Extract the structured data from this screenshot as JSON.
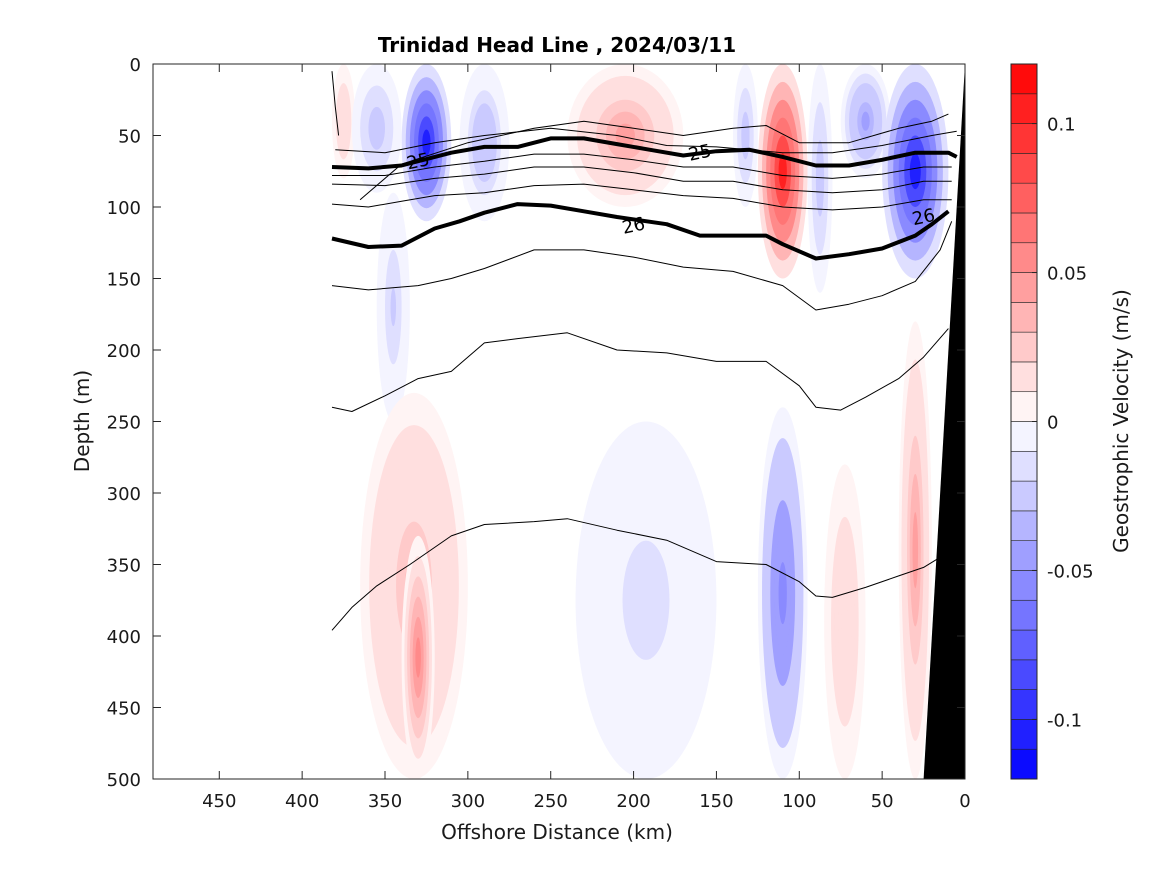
{
  "chart_data": {
    "type": "section-contour",
    "title": "Trinidad Head Line , 2024/03/11",
    "xlabel": "Offshore Distance (km)",
    "ylabel": "Depth (m)",
    "colorbar_label": "Geostrophic Velocity (m/s)",
    "xlim": [
      490,
      0
    ],
    "ylim": [
      0,
      500
    ],
    "x_direction": "reversed",
    "y_direction": "reversed",
    "x_ticks": [
      450,
      400,
      350,
      300,
      250,
      200,
      150,
      100,
      50,
      0
    ],
    "y_ticks": [
      0,
      50,
      100,
      150,
      200,
      250,
      300,
      350,
      400,
      450,
      500
    ],
    "colorbar": {
      "range": [
        -0.12,
        0.12
      ],
      "ticks": [
        0.1,
        0.05,
        0,
        -0.05,
        -0.1
      ],
      "tick_labels": [
        "0.1",
        "0.05",
        "0",
        "-0.05",
        "-0.1"
      ],
      "levels": 24,
      "colormap": "blue-white-red",
      "negative_color": "#0000ff",
      "positive_color": "#ff0000"
    },
    "velocity_patches": [
      {
        "x0": 382,
        "x1": 368,
        "y0": 0,
        "y1": 80,
        "v": 0.02
      },
      {
        "x0": 370,
        "x1": 340,
        "y0": 0,
        "y1": 90,
        "v": -0.025
      },
      {
        "x0": 340,
        "x1": 310,
        "y0": 0,
        "y1": 110,
        "v": -0.1
      },
      {
        "x0": 355,
        "x1": 335,
        "y0": 90,
        "y1": 250,
        "v": -0.02
      },
      {
        "x0": 305,
        "x1": 275,
        "y0": 0,
        "y1": 110,
        "v": -0.03
      },
      {
        "x0": 240,
        "x1": 170,
        "y0": 0,
        "y1": 100,
        "v": 0.04
      },
      {
        "x0": 140,
        "x1": 125,
        "y0": 0,
        "y1": 100,
        "v": -0.025
      },
      {
        "x0": 125,
        "x1": 95,
        "y0": 0,
        "y1": 150,
        "v": 0.1
      },
      {
        "x0": 95,
        "x1": 80,
        "y0": 0,
        "y1": 160,
        "v": -0.025
      },
      {
        "x0": 75,
        "x1": 45,
        "y0": 0,
        "y1": 80,
        "v": -0.04
      },
      {
        "x0": 50,
        "x1": 10,
        "y0": 0,
        "y1": 150,
        "v": -0.1
      },
      {
        "x0": 365,
        "x1": 300,
        "y0": 230,
        "y1": 500,
        "v": 0.03
      },
      {
        "x0": 340,
        "x1": 320,
        "y0": 330,
        "y1": 500,
        "v": 0.05
      },
      {
        "x0": 235,
        "x1": 150,
        "y0": 250,
        "y1": 500,
        "v": -0.015
      },
      {
        "x0": 125,
        "x1": 95,
        "y0": 240,
        "y1": 500,
        "v": -0.06
      },
      {
        "x0": 85,
        "x1": 60,
        "y0": 280,
        "y1": 500,
        "v": 0.02
      },
      {
        "x0": 40,
        "x1": 20,
        "y0": 180,
        "y1": 500,
        "v": 0.04
      }
    ],
    "isopycnals": [
      {
        "label": "",
        "bold": false,
        "points": [
          [
            382,
            5
          ],
          [
            380,
            30
          ],
          [
            378,
            50
          ]
        ]
      },
      {
        "label": "",
        "bold": false,
        "points": [
          [
            365,
            95
          ],
          [
            340,
            70
          ],
          [
            300,
            55
          ],
          [
            260,
            45
          ],
          [
            230,
            40
          ],
          [
            200,
            45
          ],
          [
            170,
            50
          ],
          [
            140,
            45
          ],
          [
            120,
            43
          ],
          [
            100,
            55
          ],
          [
            70,
            55
          ],
          [
            40,
            45
          ],
          [
            20,
            40
          ],
          [
            10,
            35
          ]
        ]
      },
      {
        "label": "",
        "bold": false,
        "points": [
          [
            380,
            60
          ],
          [
            350,
            62
          ],
          [
            320,
            55
          ],
          [
            290,
            50
          ],
          [
            250,
            45
          ],
          [
            210,
            50
          ],
          [
            180,
            57
          ],
          [
            150,
            58
          ],
          [
            110,
            62
          ],
          [
            80,
            62
          ],
          [
            50,
            57
          ],
          [
            20,
            50
          ],
          [
            5,
            47
          ]
        ]
      },
      {
        "label": "25",
        "bold": true,
        "label_positions": [
          [
            330,
            68
          ],
          [
            160,
            62
          ]
        ],
        "points": [
          [
            382,
            72
          ],
          [
            360,
            73
          ],
          [
            340,
            71
          ],
          [
            310,
            62
          ],
          [
            290,
            58
          ],
          [
            270,
            58
          ],
          [
            250,
            52
          ],
          [
            230,
            52
          ],
          [
            210,
            56
          ],
          [
            190,
            60
          ],
          [
            170,
            64
          ],
          [
            150,
            61
          ],
          [
            130,
            60
          ],
          [
            110,
            65
          ],
          [
            90,
            71
          ],
          [
            70,
            71
          ],
          [
            50,
            67
          ],
          [
            30,
            62
          ],
          [
            10,
            62
          ],
          [
            5,
            65
          ]
        ]
      },
      {
        "label": "",
        "bold": false,
        "points": [
          [
            382,
            78
          ],
          [
            350,
            78
          ],
          [
            320,
            72
          ],
          [
            290,
            68
          ],
          [
            260,
            63
          ],
          [
            230,
            63
          ],
          [
            200,
            67
          ],
          [
            170,
            72
          ],
          [
            140,
            72
          ],
          [
            110,
            78
          ],
          [
            80,
            80
          ],
          [
            50,
            77
          ],
          [
            25,
            72
          ],
          [
            8,
            72
          ]
        ]
      },
      {
        "label": "",
        "bold": false,
        "points": [
          [
            382,
            84
          ],
          [
            350,
            85
          ],
          [
            320,
            80
          ],
          [
            290,
            77
          ],
          [
            260,
            72
          ],
          [
            230,
            72
          ],
          [
            200,
            76
          ],
          [
            170,
            82
          ],
          [
            140,
            82
          ],
          [
            110,
            88
          ],
          [
            80,
            90
          ],
          [
            50,
            88
          ],
          [
            25,
            82
          ],
          [
            8,
            82
          ]
        ]
      },
      {
        "label": "",
        "bold": false,
        "points": [
          [
            382,
            98
          ],
          [
            360,
            100
          ],
          [
            340,
            96
          ],
          [
            320,
            92
          ],
          [
            290,
            90
          ],
          [
            260,
            85
          ],
          [
            230,
            84
          ],
          [
            200,
            88
          ],
          [
            170,
            92
          ],
          [
            140,
            94
          ],
          [
            110,
            100
          ],
          [
            80,
            102
          ],
          [
            50,
            100
          ],
          [
            25,
            95
          ],
          [
            8,
            95
          ]
        ]
      },
      {
        "label": "26",
        "bold": true,
        "label_positions": [
          [
            200,
            113
          ],
          [
            25,
            107
          ]
        ],
        "points": [
          [
            382,
            122
          ],
          [
            360,
            128
          ],
          [
            340,
            127
          ],
          [
            320,
            115
          ],
          [
            305,
            110
          ],
          [
            290,
            104
          ],
          [
            270,
            98
          ],
          [
            250,
            99
          ],
          [
            230,
            103
          ],
          [
            210,
            107
          ],
          [
            180,
            112
          ],
          [
            160,
            120
          ],
          [
            140,
            120
          ],
          [
            120,
            120
          ],
          [
            110,
            126
          ],
          [
            90,
            136
          ],
          [
            70,
            133
          ],
          [
            50,
            129
          ],
          [
            30,
            120
          ],
          [
            20,
            112
          ],
          [
            10,
            103
          ]
        ]
      },
      {
        "label": "",
        "bold": false,
        "points": [
          [
            382,
            155
          ],
          [
            360,
            158
          ],
          [
            330,
            155
          ],
          [
            310,
            150
          ],
          [
            290,
            143
          ],
          [
            260,
            130
          ],
          [
            230,
            130
          ],
          [
            200,
            135
          ],
          [
            170,
            142
          ],
          [
            140,
            145
          ],
          [
            110,
            155
          ],
          [
            90,
            172
          ],
          [
            70,
            168
          ],
          [
            50,
            162
          ],
          [
            30,
            152
          ],
          [
            15,
            130
          ],
          [
            8,
            110
          ]
        ]
      },
      {
        "label": "",
        "bold": false,
        "points": [
          [
            382,
            240
          ],
          [
            370,
            243
          ],
          [
            350,
            232
          ],
          [
            330,
            220
          ],
          [
            310,
            215
          ],
          [
            290,
            195
          ],
          [
            270,
            192
          ],
          [
            240,
            188
          ],
          [
            210,
            200
          ],
          [
            180,
            202
          ],
          [
            150,
            208
          ],
          [
            120,
            208
          ],
          [
            100,
            225
          ],
          [
            90,
            240
          ],
          [
            75,
            242
          ],
          [
            60,
            233
          ],
          [
            40,
            220
          ],
          [
            25,
            205
          ],
          [
            10,
            185
          ]
        ]
      },
      {
        "label": "",
        "bold": false,
        "points": [
          [
            382,
            396
          ],
          [
            370,
            380
          ],
          [
            355,
            365
          ],
          [
            335,
            350
          ],
          [
            310,
            330
          ],
          [
            290,
            322
          ],
          [
            260,
            320
          ],
          [
            240,
            318
          ],
          [
            210,
            326
          ],
          [
            180,
            333
          ],
          [
            150,
            348
          ],
          [
            120,
            350
          ],
          [
            100,
            362
          ],
          [
            90,
            372
          ],
          [
            80,
            373
          ],
          [
            60,
            366
          ],
          [
            40,
            358
          ],
          [
            25,
            352
          ],
          [
            15,
            345
          ]
        ]
      }
    ],
    "bathymetry": {
      "color": "#000000",
      "points": [
        [
          0,
          0
        ],
        [
          25,
          500
        ],
        [
          0,
          500
        ]
      ]
    }
  }
}
